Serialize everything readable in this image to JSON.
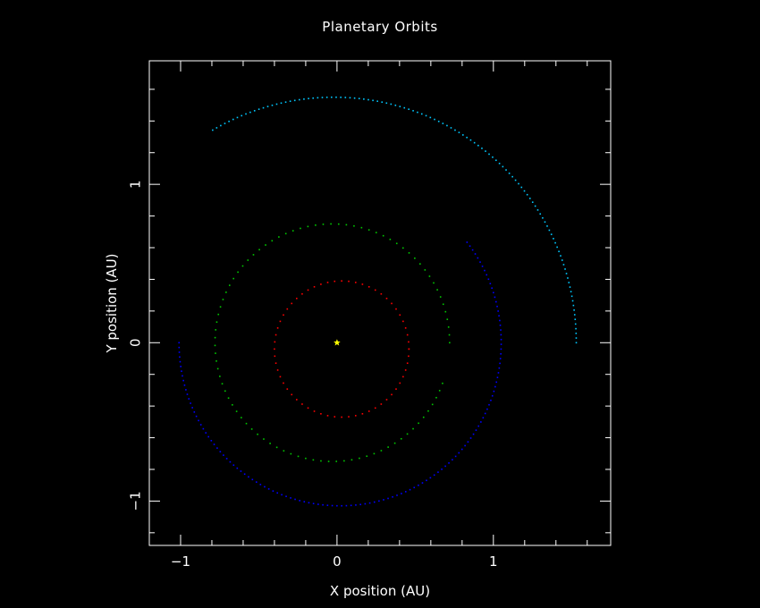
{
  "chart_data": {
    "type": "scatter",
    "title": "Planetary Orbits",
    "xlabel": "X position (AU)",
    "ylabel": "Y position (AU)",
    "xlim": [
      -1.2,
      1.75
    ],
    "ylim": [
      -1.28,
      1.78
    ],
    "x_ticks": [
      -1,
      0,
      1
    ],
    "y_ticks": [
      -1,
      0,
      1
    ],
    "x_tick_labels": [
      "−1",
      "0",
      "1"
    ],
    "y_tick_labels": [
      "−1",
      "0",
      "1"
    ],
    "minor_tick_step": 0.2,
    "grid": false,
    "background": "#000000",
    "axes_color": "#ffffff",
    "star": {
      "x": 0,
      "y": 0,
      "color": "#ffff00",
      "marker": "star"
    },
    "orbits": [
      {
        "color": "#ff0000",
        "cx": 0.03,
        "cy": -0.04,
        "r": 0.43,
        "start_deg": 0,
        "end_deg": 360,
        "n": 60
      },
      {
        "color": "#00c800",
        "cx": -0.03,
        "cy": 0.0,
        "r": 0.75,
        "start_deg": 0,
        "end_deg": 340,
        "n": 90
      },
      {
        "color": "#0000ff",
        "cx": 0.02,
        "cy": 0.0,
        "r": 1.03,
        "start_deg": 38,
        "end_deg": 180,
        "n": 130,
        "reverse": true
      },
      {
        "color": "#00c8ff",
        "cx": -0.02,
        "cy": 0.0,
        "r": 1.55,
        "start_deg": 0,
        "end_deg": 120,
        "n": 110
      }
    ]
  }
}
